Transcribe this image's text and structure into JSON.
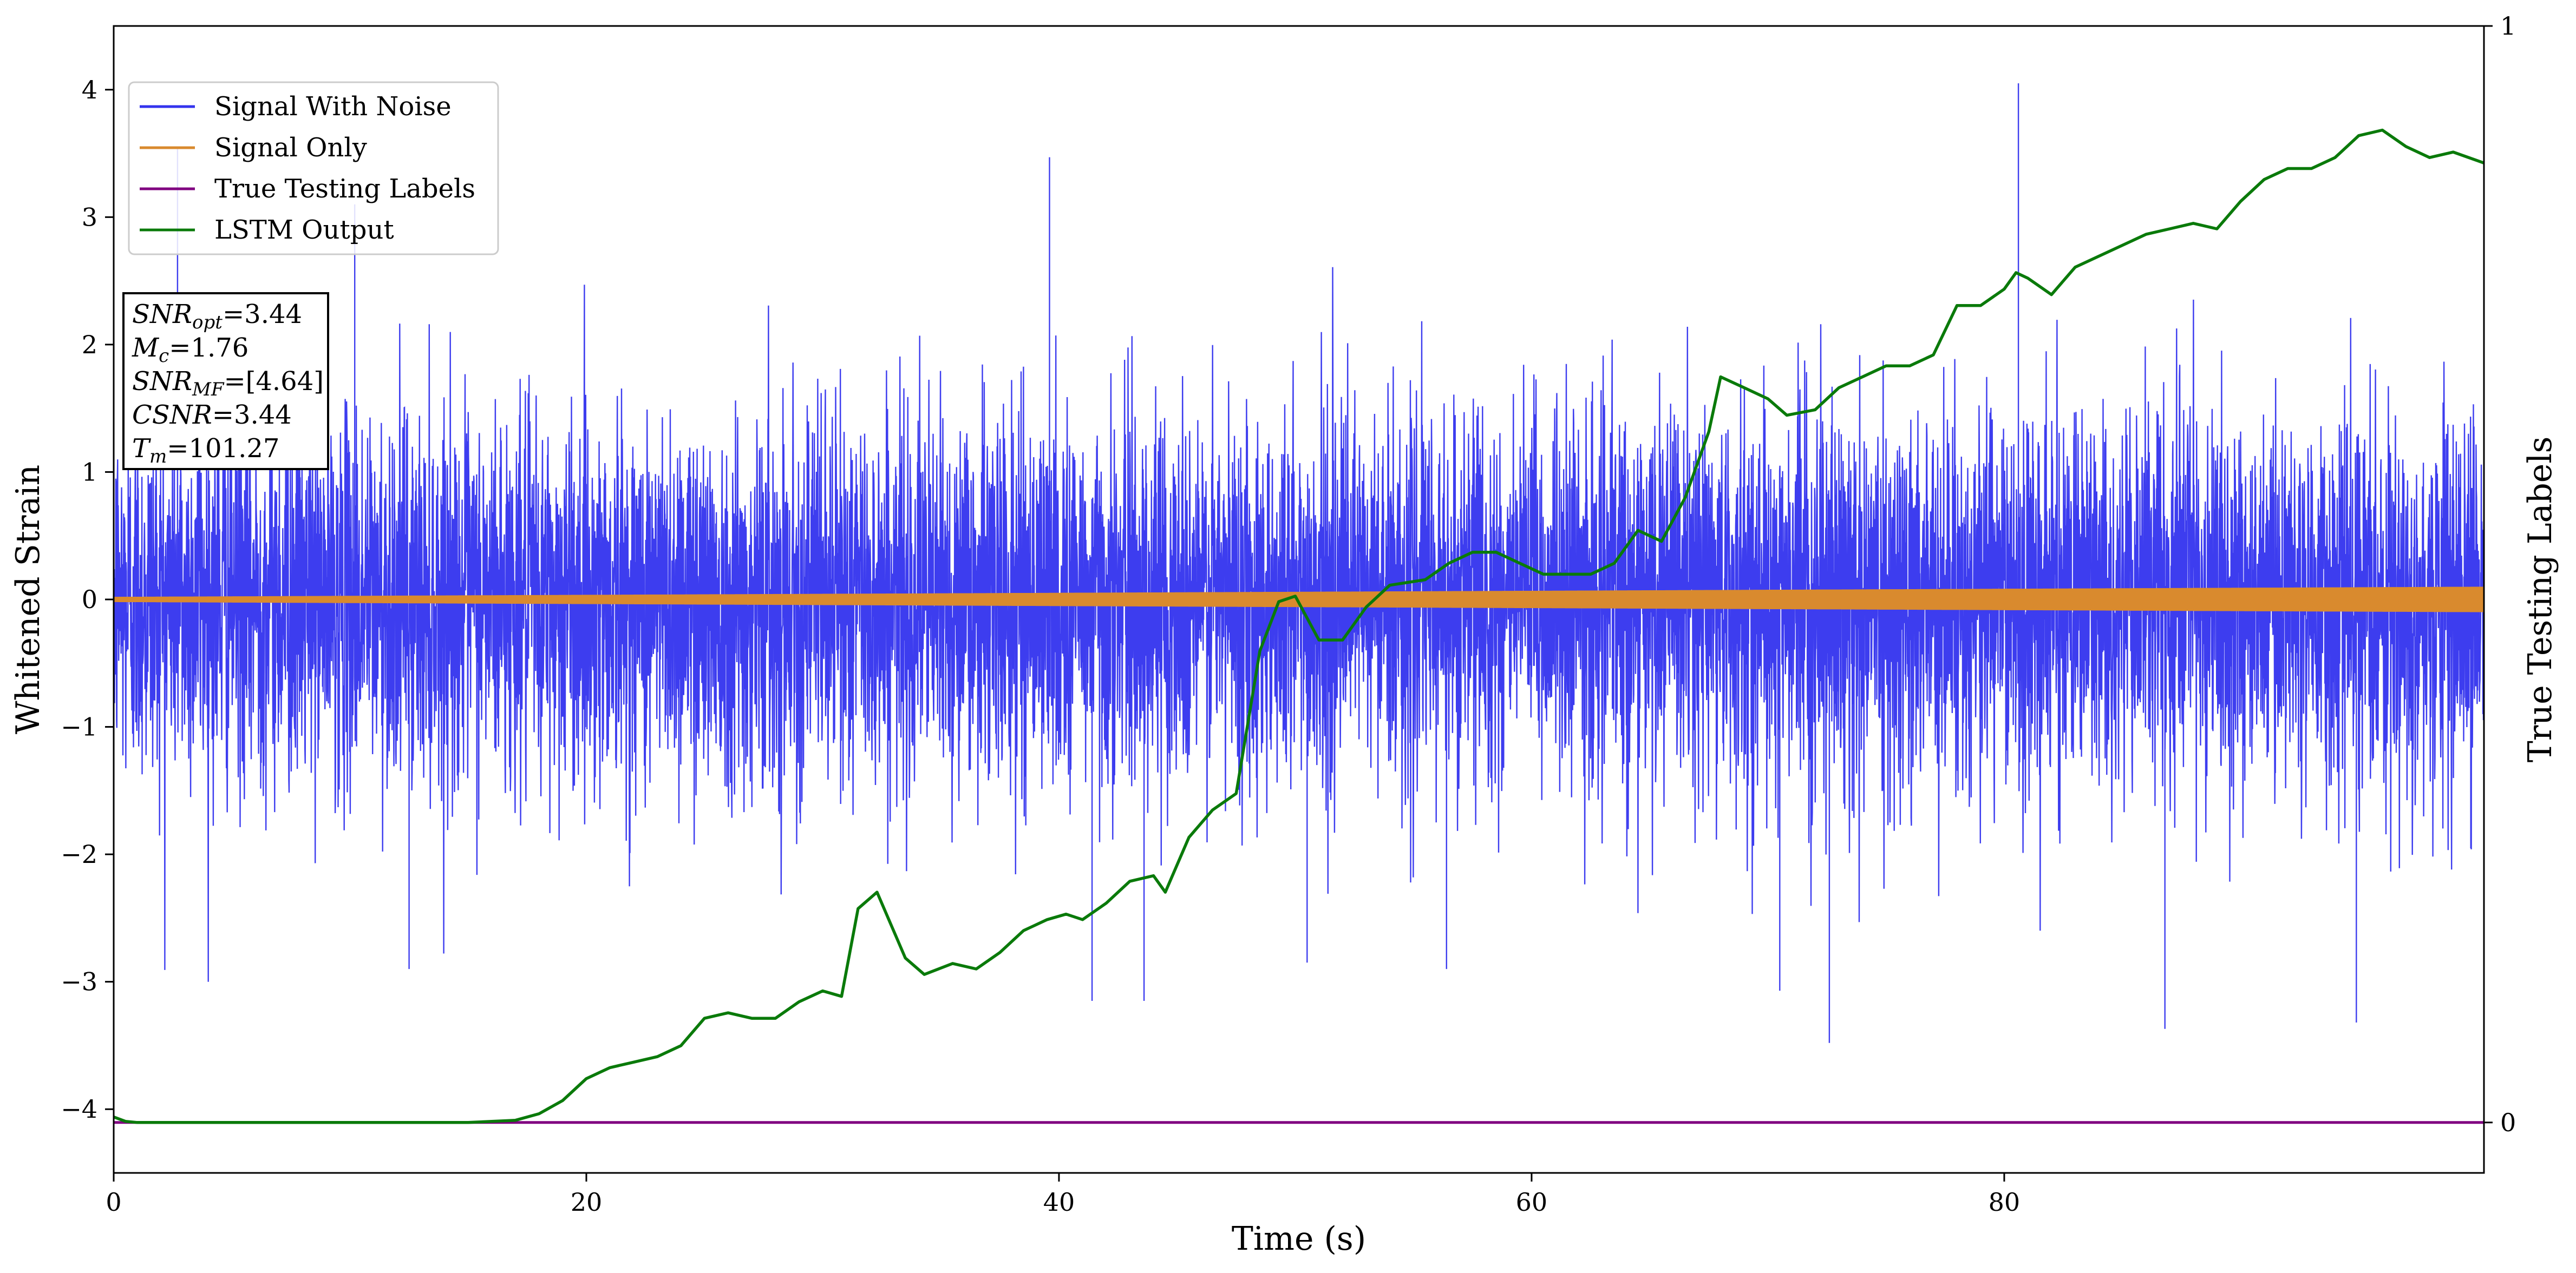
{
  "chart_data": {
    "type": "line",
    "xlabel": "Time (s)",
    "ylabel": "Whitened Strain",
    "y2label": "True Testing Labels",
    "xlim": [
      0,
      100.3
    ],
    "ylim": [
      -4.5,
      4.5
    ],
    "y2lim": [
      -0.046,
      1.0
    ],
    "xticks": [
      0,
      20,
      40,
      60,
      80
    ],
    "yticks": [
      -4,
      -3,
      -2,
      -1,
      0,
      1,
      2,
      3,
      4
    ],
    "y2ticks": [
      0,
      1
    ],
    "grid": false,
    "legend_position": "top-left",
    "colors": {
      "noise": "#3333ee",
      "signal": "#d98a2e",
      "labels": "#800080",
      "lstm": "#0a7a0a"
    },
    "series": [
      {
        "name": "Signal With Noise",
        "axis": "left",
        "kind": "noise",
        "x_range": [
          0,
          100.3
        ],
        "std": 0.72,
        "spikes": [
          {
            "x": 80.6,
            "y": 4.05
          },
          {
            "x": 2.7,
            "y": 3.55
          },
          {
            "x": 39.6,
            "y": 3.47
          },
          {
            "x": 10.2,
            "y": 3.1
          },
          {
            "x": 72.6,
            "y": -3.48
          },
          {
            "x": 86.8,
            "y": -3.37
          },
          {
            "x": 94.9,
            "y": -3.32
          },
          {
            "x": 12.5,
            "y": -2.9
          },
          {
            "x": 41.4,
            "y": -3.15
          },
          {
            "x": 43.6,
            "y": -3.15
          },
          {
            "x": 70.5,
            "y": -3.07
          },
          {
            "x": 50.5,
            "y": -2.85
          },
          {
            "x": 56.4,
            "y": -2.9
          }
        ]
      },
      {
        "name": "Signal Only",
        "axis": "left",
        "kind": "chirp",
        "x_range": [
          0,
          100.3
        ],
        "amp_start": 0.02,
        "amp_end": 0.1
      },
      {
        "name": "True Testing Labels",
        "axis": "right",
        "x": [
          0,
          100.3
        ],
        "y": [
          0,
          0
        ]
      },
      {
        "name": "LSTM Output",
        "axis": "right",
        "x": [
          0,
          0.5,
          1,
          5,
          10,
          15,
          17,
          18,
          19,
          20,
          21,
          22,
          23,
          24,
          25,
          26,
          27,
          28,
          29,
          30,
          30.8,
          31.5,
          32.3,
          33.5,
          34.3,
          35.5,
          36.5,
          37.5,
          38.5,
          39.5,
          40.3,
          41,
          42,
          43,
          44,
          44.5,
          45.5,
          46.5,
          47.5,
          48.5,
          49.3,
          50,
          51,
          52,
          53,
          54,
          55.5,
          56.5,
          57.5,
          58.5,
          59.5,
          60.5,
          61.5,
          62.5,
          63.5,
          64.5,
          65.5,
          66.5,
          67.5,
          68,
          69,
          70,
          70.8,
          72,
          73,
          74,
          75,
          76,
          77,
          78,
          79,
          80,
          80.5,
          81,
          82,
          83,
          84,
          85,
          86,
          87,
          88,
          89,
          90,
          91,
          92,
          93,
          94,
          95,
          96,
          97,
          98,
          99,
          100.3
        ],
        "y": [
          0.005,
          0.001,
          0.0,
          0.0,
          0.0,
          0.0,
          0.002,
          0.008,
          0.02,
          0.04,
          0.05,
          0.055,
          0.06,
          0.07,
          0.095,
          0.1,
          0.095,
          0.095,
          0.11,
          0.12,
          0.115,
          0.195,
          0.21,
          0.15,
          0.135,
          0.145,
          0.14,
          0.155,
          0.175,
          0.185,
          0.19,
          0.185,
          0.2,
          0.22,
          0.225,
          0.21,
          0.26,
          0.285,
          0.3,
          0.43,
          0.475,
          0.48,
          0.44,
          0.44,
          0.47,
          0.49,
          0.495,
          0.51,
          0.52,
          0.52,
          0.51,
          0.5,
          0.5,
          0.5,
          0.51,
          0.54,
          0.53,
          0.57,
          0.63,
          0.68,
          0.67,
          0.66,
          0.645,
          0.65,
          0.67,
          0.68,
          0.69,
          0.69,
          0.7,
          0.745,
          0.745,
          0.76,
          0.775,
          0.77,
          0.755,
          0.78,
          0.79,
          0.8,
          0.81,
          0.815,
          0.82,
          0.815,
          0.84,
          0.86,
          0.87,
          0.87,
          0.88,
          0.9,
          0.905,
          0.89,
          0.88,
          0.885,
          0.875
        ]
      }
    ],
    "annotation": {
      "lines": [
        {
          "base": "SNR",
          "sub": "opt",
          "rest": "=3.44"
        },
        {
          "base": "M",
          "sub": "c",
          "rest": "=1.76"
        },
        {
          "base": "SNR",
          "sub": "MF",
          "rest": "=[4.64]"
        },
        {
          "base": "CSNR",
          "sub": "",
          "rest": "=3.44"
        },
        {
          "base": "T",
          "sub": "m",
          "rest": "=101.27"
        }
      ]
    }
  }
}
